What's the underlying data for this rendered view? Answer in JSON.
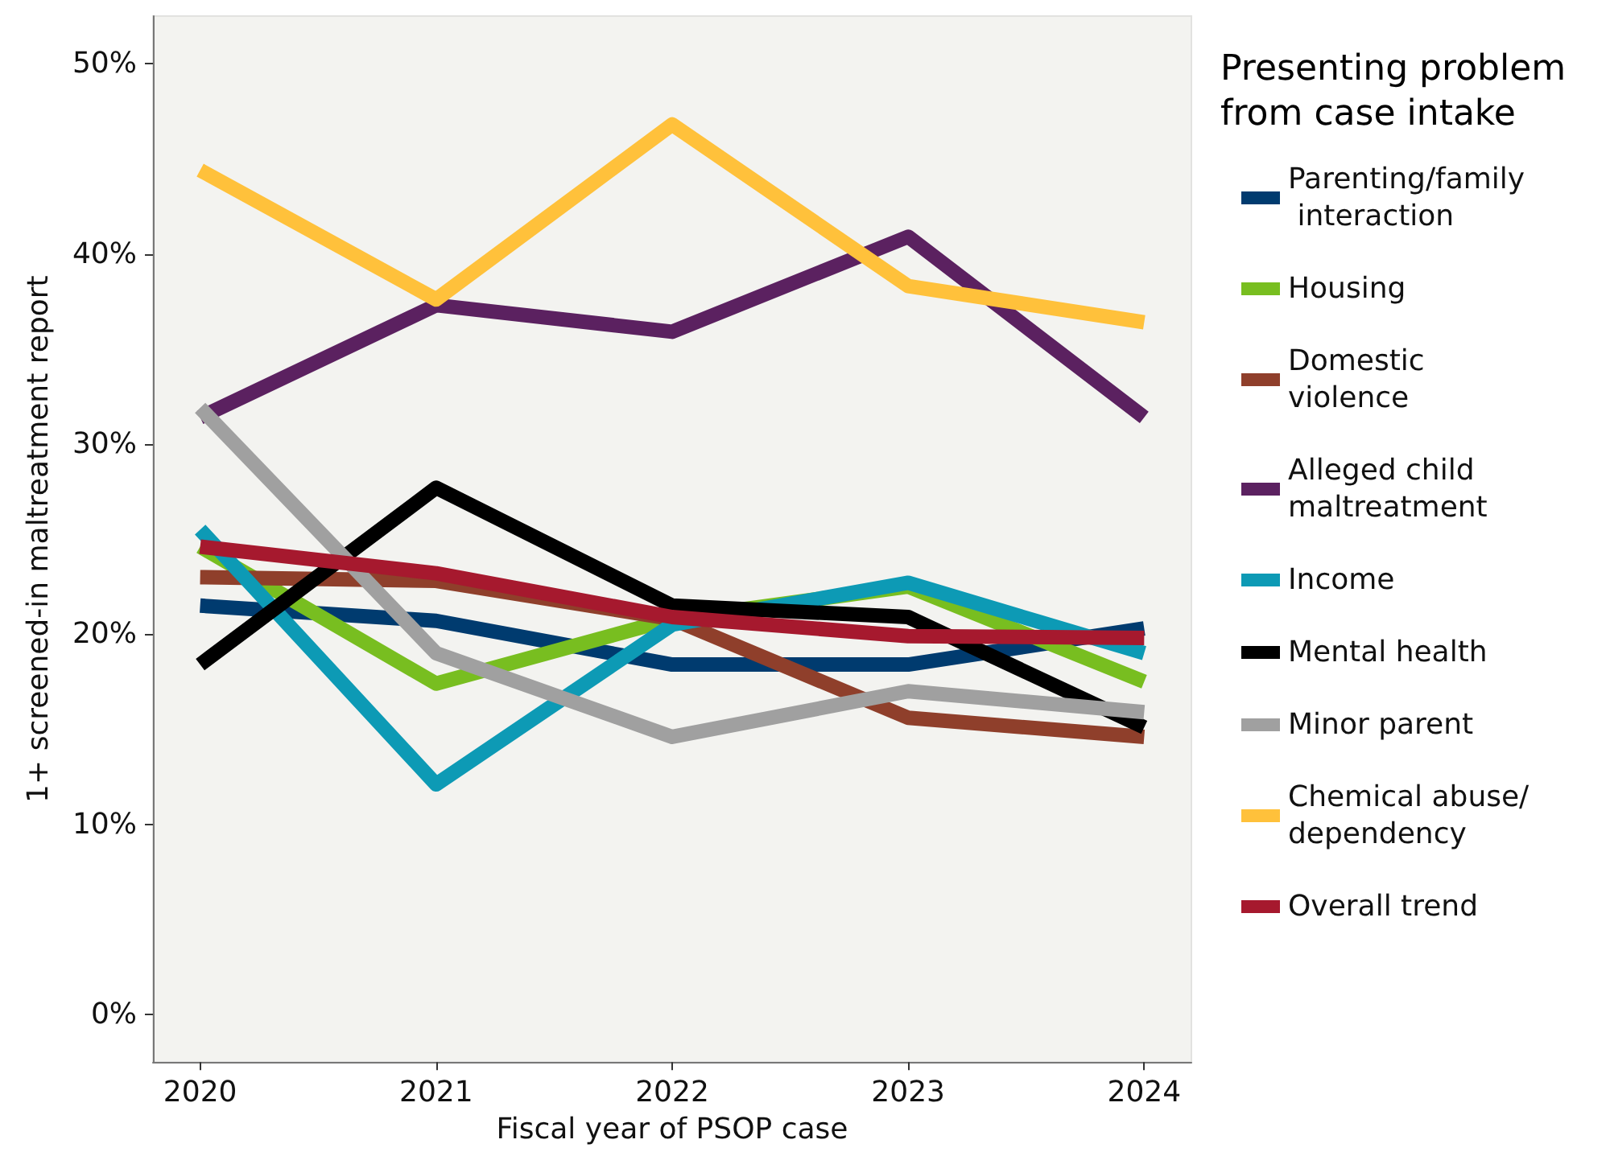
{
  "chart_data": {
    "type": "line",
    "xlabel": "Fiscal year of PSOP case",
    "ylabel": "1+ screened-in maltreatment report",
    "legend_title": "Presenting problem from case intake",
    "x": [
      2020,
      2021,
      2022,
      2023,
      2024
    ],
    "xlim": [
      2019.8,
      2024.2
    ],
    "xticks": [
      2020,
      2021,
      2022,
      2023,
      2024
    ],
    "ylim": [
      -2.5,
      52.5
    ],
    "yticks": [
      {
        "value": 0,
        "label": "0%"
      },
      {
        "value": 10,
        "label": "10%"
      },
      {
        "value": 20,
        "label": "20%"
      },
      {
        "value": 30,
        "label": "30%"
      },
      {
        "value": 40,
        "label": "40%"
      },
      {
        "value": 50,
        "label": "50%"
      }
    ],
    "grid": false,
    "legend": "right",
    "marker": "none",
    "line_style": "solid",
    "series": [
      {
        "name": "Parenting/family interaction",
        "color": "#003b6f",
        "values": [
          21.5,
          20.7,
          18.4,
          18.4,
          20.3
        ]
      },
      {
        "name": "Housing",
        "color": "#78be20",
        "values": [
          24.6,
          17.4,
          20.8,
          22.5,
          17.5
        ]
      },
      {
        "name": "Domestic violence",
        "color": "#8f3f2b",
        "values": [
          23.0,
          22.8,
          20.8,
          15.6,
          14.6
        ]
      },
      {
        "name": "Alleged child maltreatment",
        "color": "#5b2160",
        "values": [
          31.4,
          37.3,
          35.9,
          40.9,
          31.4
        ]
      },
      {
        "name": "Income",
        "color": "#0d9ab5",
        "values": [
          25.5,
          12.1,
          20.5,
          22.7,
          19.0
        ]
      },
      {
        "name": "Mental health",
        "color": "#000000",
        "values": [
          18.4,
          27.7,
          21.5,
          20.9,
          15.1
        ]
      },
      {
        "name": "Minor parent",
        "color": "#a0a0a0",
        "values": [
          31.9,
          19.0,
          14.6,
          17.0,
          15.9
        ]
      },
      {
        "name": "Chemical abuse/ dependency",
        "color": "#ffc13b",
        "values": [
          44.4,
          37.6,
          46.8,
          38.3,
          36.4
        ]
      },
      {
        "name": "Overall trend",
        "color": "#a6192e",
        "values": [
          24.6,
          23.2,
          20.9,
          19.9,
          19.8
        ]
      }
    ]
  }
}
